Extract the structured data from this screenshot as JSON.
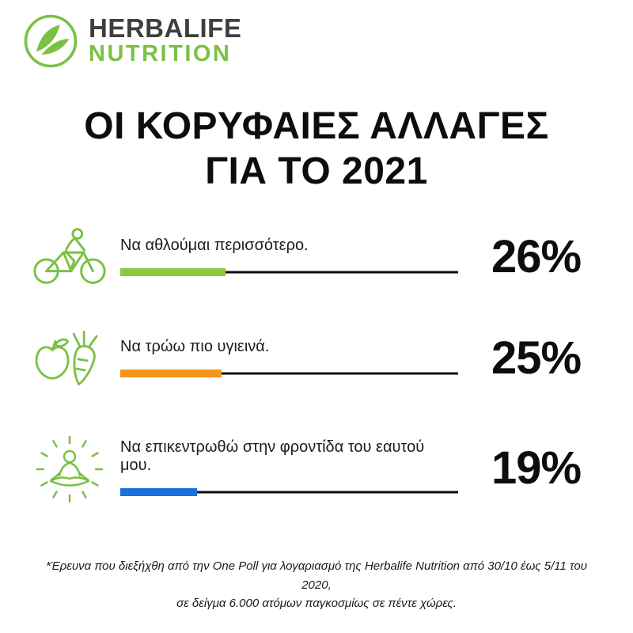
{
  "logo": {
    "brand": "HERBALIFE",
    "sub": "NUTRITION",
    "leaf_icon": "herbalife-leaf-icon",
    "brand_color": "#3f3f41",
    "green": "#7AC143"
  },
  "title": {
    "line1": "ΟΙ ΚΟΡΥΦΑΙΕΣ ΑΛΛΑΓΕΣ",
    "line2": "ΓΙΑ ΤΟ 2021"
  },
  "chart_data": {
    "type": "bar",
    "title": "ΟΙ ΚΟΡΥΦΑΙΕΣ ΑΛΛΑΓΕΣ ΓΙΑ ΤΟ 2021",
    "orientation": "horizontal",
    "unit": "%",
    "xlim": [
      0,
      100
    ],
    "categories": [
      "Να αθλούμαι περισσότερο.",
      "Να τρώω πιο υγιεινά.",
      "Να επικεντρωθώ στην φροντίδα του εαυτού μου."
    ],
    "values": [
      26,
      25,
      19
    ],
    "value_labels": [
      "26%",
      "25%",
      "19%"
    ],
    "bar_colors": [
      "#8DC63F",
      "#F7941E",
      "#1B6FE0"
    ],
    "icons": [
      "cyclist-icon",
      "apple-carrot-icon",
      "meditation-icon"
    ]
  },
  "footnote": {
    "line1": "*Έρευνα που διεξήχθη από την One Poll για λογαριασμό της Herbalife Nutrition από 30/10 έως 5/11 του 2020,",
    "line2": "σε δείγμα 6.000 ατόμων παγκοσμίως σε πέντε χώρες."
  }
}
